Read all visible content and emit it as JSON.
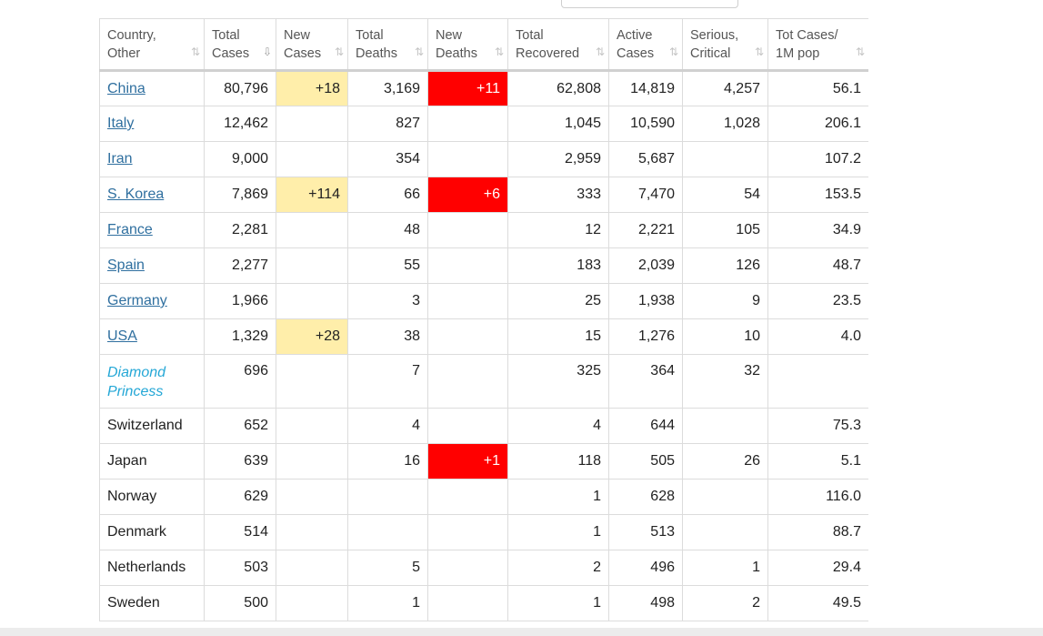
{
  "header": [
    {
      "label": "Country, Other",
      "sort": "⇅"
    },
    {
      "label": "Total Cases",
      "sort": "⇩"
    },
    {
      "label": "New Cases",
      "sort": "⇅"
    },
    {
      "label": "Total Deaths",
      "sort": "⇅"
    },
    {
      "label": "New Deaths",
      "sort": "⇅"
    },
    {
      "label": "Total Recovered",
      "sort": "⇅"
    },
    {
      "label": "Active Cases",
      "sort": "⇅"
    },
    {
      "label": "Serious, Critical",
      "sort": "⇅"
    },
    {
      "label": "Tot Cases/ 1M pop",
      "sort": "⇅"
    }
  ],
  "rows": [
    {
      "country": "China",
      "link": true,
      "total_cases": "80,796",
      "new_cases": "+18",
      "total_deaths": "3,169",
      "new_deaths": "+11",
      "total_recovered": "62,808",
      "active_cases": "14,819",
      "serious_critical": "4,257",
      "tot_cases_1m": "56.1"
    },
    {
      "country": "Italy",
      "link": true,
      "total_cases": "12,462",
      "new_cases": "",
      "total_deaths": "827",
      "new_deaths": "",
      "total_recovered": "1,045",
      "active_cases": "10,590",
      "serious_critical": "1,028",
      "tot_cases_1m": "206.1"
    },
    {
      "country": "Iran",
      "link": true,
      "total_cases": "9,000",
      "new_cases": "",
      "total_deaths": "354",
      "new_deaths": "",
      "total_recovered": "2,959",
      "active_cases": "5,687",
      "serious_critical": "",
      "tot_cases_1m": "107.2"
    },
    {
      "country": "S. Korea",
      "link": true,
      "total_cases": "7,869",
      "new_cases": "+114",
      "total_deaths": "66",
      "new_deaths": "+6",
      "total_recovered": "333",
      "active_cases": "7,470",
      "serious_critical": "54",
      "tot_cases_1m": "153.5"
    },
    {
      "country": "France",
      "link": true,
      "total_cases": "2,281",
      "new_cases": "",
      "total_deaths": "48",
      "new_deaths": "",
      "total_recovered": "12",
      "active_cases": "2,221",
      "serious_critical": "105",
      "tot_cases_1m": "34.9"
    },
    {
      "country": "Spain",
      "link": true,
      "total_cases": "2,277",
      "new_cases": "",
      "total_deaths": "55",
      "new_deaths": "",
      "total_recovered": "183",
      "active_cases": "2,039",
      "serious_critical": "126",
      "tot_cases_1m": "48.7"
    },
    {
      "country": "Germany",
      "link": true,
      "total_cases": "1,966",
      "new_cases": "",
      "total_deaths": "3",
      "new_deaths": "",
      "total_recovered": "25",
      "active_cases": "1,938",
      "serious_critical": "9",
      "tot_cases_1m": "23.5"
    },
    {
      "country": "USA",
      "link": true,
      "total_cases": "1,329",
      "new_cases": "+28",
      "total_deaths": "38",
      "new_deaths": "",
      "total_recovered": "15",
      "active_cases": "1,276",
      "serious_critical": "10",
      "tot_cases_1m": "4.0"
    },
    {
      "country": "Diamond Princess",
      "ship": true,
      "total_cases": "696",
      "new_cases": "",
      "total_deaths": "7",
      "new_deaths": "",
      "total_recovered": "325",
      "active_cases": "364",
      "serious_critical": "32",
      "tot_cases_1m": ""
    },
    {
      "country": "Switzerland",
      "total_cases": "652",
      "new_cases": "",
      "total_deaths": "4",
      "new_deaths": "",
      "total_recovered": "4",
      "active_cases": "644",
      "serious_critical": "",
      "tot_cases_1m": "75.3"
    },
    {
      "country": "Japan",
      "total_cases": "639",
      "new_cases": "",
      "total_deaths": "16",
      "new_deaths": "+1",
      "total_recovered": "118",
      "active_cases": "505",
      "serious_critical": "26",
      "tot_cases_1m": "5.1"
    },
    {
      "country": "Norway",
      "total_cases": "629",
      "new_cases": "",
      "total_deaths": "",
      "new_deaths": "",
      "total_recovered": "1",
      "active_cases": "628",
      "serious_critical": "",
      "tot_cases_1m": "116.0"
    },
    {
      "country": "Denmark",
      "total_cases": "514",
      "new_cases": "",
      "total_deaths": "",
      "new_deaths": "",
      "total_recovered": "1",
      "active_cases": "513",
      "serious_critical": "",
      "tot_cases_1m": "88.7"
    },
    {
      "country": "Netherlands",
      "total_cases": "503",
      "new_cases": "",
      "total_deaths": "5",
      "new_deaths": "",
      "total_recovered": "2",
      "active_cases": "496",
      "serious_critical": "1",
      "tot_cases_1m": "29.4"
    },
    {
      "country": "Sweden",
      "total_cases": "500",
      "new_cases": "",
      "total_deaths": "1",
      "new_deaths": "",
      "total_recovered": "1",
      "active_cases": "498",
      "serious_critical": "2",
      "tot_cases_1m": "49.5"
    }
  ],
  "colors": {
    "new_cases_highlight": "#ffeeaa",
    "new_deaths_highlight": "#ff0000",
    "link": "#2f6f9f",
    "ship": "#24a7d6"
  }
}
